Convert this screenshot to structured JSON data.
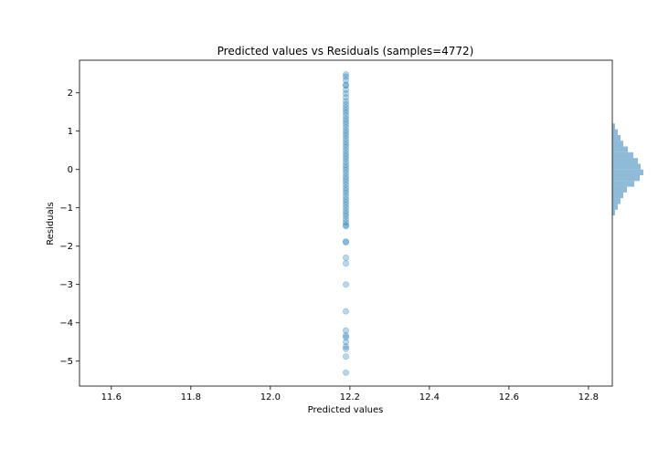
{
  "chart_data": {
    "type": "scatter",
    "title": "Predicted values vs Residuals (samples=4772)",
    "xlabel": "Predicted values",
    "ylabel": "Residuals",
    "xlim": [
      11.52,
      12.86
    ],
    "ylim": [
      -5.65,
      2.85
    ],
    "xticks": [
      "11.6",
      "11.8",
      "12.0",
      "12.2",
      "12.4",
      "12.6",
      "12.8"
    ],
    "yticks": [
      "2",
      "1",
      "0",
      "−1",
      "−2",
      "−3",
      "−4",
      "−5"
    ],
    "grid": false,
    "point_color": "#1f77b4",
    "series": [
      {
        "x": 12.19,
        "y": [
          2.48,
          2.42,
          2.33,
          2.21,
          2.19,
          2.08,
          1.98,
          1.88,
          1.78,
          1.7,
          1.62,
          1.55,
          1.48,
          1.4,
          1.32,
          1.25,
          1.18,
          1.1,
          1.02,
          0.95,
          0.88,
          0.8,
          0.72,
          0.65,
          0.58,
          0.5,
          0.42,
          0.35,
          0.28,
          0.2,
          0.12,
          0.05,
          -0.02,
          -0.1,
          -0.18,
          -0.25,
          -0.32,
          -0.4,
          -0.48,
          -0.55,
          -0.62,
          -0.7,
          -0.78,
          -0.85,
          -0.92,
          -1.0,
          -1.08,
          -1.15,
          -1.22,
          -1.3,
          -1.38,
          -1.45,
          -1.48,
          -1.88,
          -1.9,
          -2.3,
          -2.45,
          -3.0,
          -3.7,
          -4.2,
          -4.33,
          -4.38,
          -4.5,
          -4.62,
          -4.68,
          -4.88,
          -5.3
        ]
      }
    ],
    "histogram": {
      "orientation": "horizontal",
      "color": "#1f77b4",
      "bins": [
        {
          "y0": 1.2,
          "y1": 1.05,
          "count": 3
        },
        {
          "y0": 1.05,
          "y1": 0.9,
          "count": 6
        },
        {
          "y0": 0.9,
          "y1": 0.75,
          "count": 9
        },
        {
          "y0": 0.75,
          "y1": 0.6,
          "count": 12
        },
        {
          "y0": 0.6,
          "y1": 0.45,
          "count": 17
        },
        {
          "y0": 0.45,
          "y1": 0.3,
          "count": 23
        },
        {
          "y0": 0.3,
          "y1": 0.15,
          "count": 28
        },
        {
          "y0": 0.15,
          "y1": 0.0,
          "count": 31
        },
        {
          "y0": 0.0,
          "y1": -0.15,
          "count": 34
        },
        {
          "y0": -0.15,
          "y1": -0.3,
          "count": 30
        },
        {
          "y0": -0.3,
          "y1": -0.45,
          "count": 24
        },
        {
          "y0": -0.45,
          "y1": -0.6,
          "count": 16
        },
        {
          "y0": -0.6,
          "y1": -0.75,
          "count": 12
        },
        {
          "y0": -0.75,
          "y1": -0.9,
          "count": 9
        },
        {
          "y0": -0.9,
          "y1": -1.05,
          "count": 6
        },
        {
          "y0": -1.05,
          "y1": -1.2,
          "count": 3
        }
      ]
    }
  }
}
